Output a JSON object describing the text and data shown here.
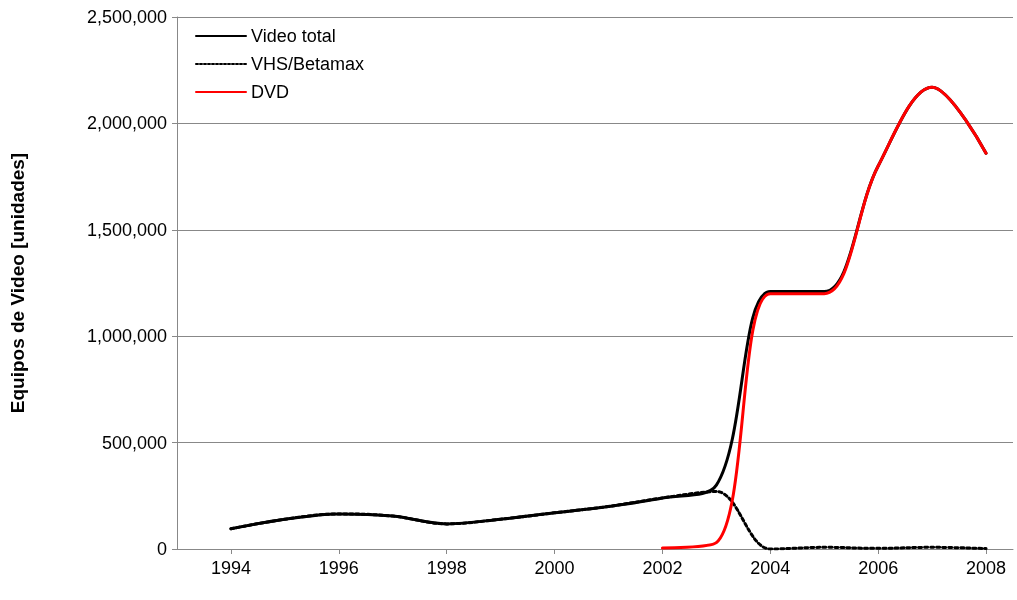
{
  "chart_data": {
    "type": "line",
    "ylabel": "Equipos de Video [unidades]",
    "x": [
      1994,
      1995,
      1996,
      1997,
      1998,
      1999,
      2000,
      2001,
      2002,
      2003,
      2004,
      2005,
      2006,
      2007,
      2008
    ],
    "series": [
      {
        "name": "Video total",
        "color": "#000000",
        "line_style": "solid",
        "values": [
          95000,
          140000,
          165000,
          155000,
          118000,
          140000,
          170000,
          200000,
          240000,
          300000,
          1210000,
          1210000,
          1800000,
          2170000,
          1860000
        ]
      },
      {
        "name": "VHS/Betamax",
        "color": "#000000",
        "line_style": "dotted",
        "values": [
          95000,
          140000,
          165000,
          155000,
          118000,
          140000,
          170000,
          200000,
          240000,
          270000,
          0,
          8000,
          3000,
          8000,
          2000
        ]
      },
      {
        "name": "DVD",
        "color": "#ff0000",
        "line_style": "solid",
        "values": [
          null,
          null,
          null,
          null,
          null,
          null,
          null,
          null,
          5000,
          30000,
          1200000,
          1200000,
          1800000,
          2170000,
          1860000
        ]
      }
    ],
    "xlim": [
      1993,
      2008.5
    ],
    "xticks": [
      1994,
      1996,
      1998,
      2000,
      2002,
      2004,
      2006,
      2008
    ],
    "ylim": [
      0,
      2500000
    ],
    "yticks": [
      0,
      {
        "value": 500000,
        "label": "500,000"
      },
      {
        "value": 1000000,
        "label": "1,000,000"
      },
      {
        "value": 1500000,
        "label": "1,500,000"
      },
      {
        "value": 2000000,
        "label": "2,000,000"
      },
      {
        "value": 2500000,
        "label": "2,500,000"
      }
    ],
    "grid": "y",
    "legend": "top left",
    "marker": "none"
  }
}
